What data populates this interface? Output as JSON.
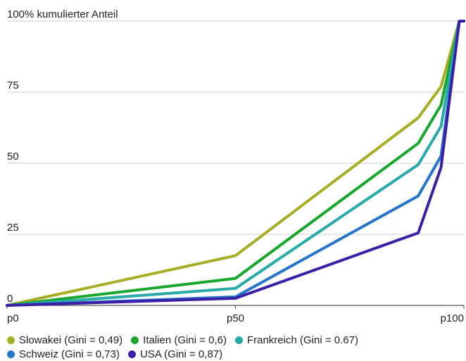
{
  "chart_data": {
    "type": "line",
    "title": "100% kumulierter Anteil",
    "xlabel": "",
    "ylabel": "100% kumulierter Anteil",
    "x": [
      0,
      50,
      90,
      95,
      99,
      100
    ],
    "x_tick_labels": [
      "p0",
      "p50",
      "p100"
    ],
    "x_tick_values": [
      0,
      50,
      100
    ],
    "ylim": [
      0,
      100
    ],
    "y_tick_labels": [
      "0",
      "25",
      "50",
      "75",
      "100% kumulierter Anteil"
    ],
    "y_tick_values": [
      0,
      25,
      50,
      75,
      100
    ],
    "grid": "horizontal",
    "legend_position": "bottom",
    "series": [
      {
        "name": "Slowakei (Gini = 0,49)",
        "color": "#a8ad26",
        "values": [
          0,
          17.5,
          66,
          77,
          100,
          100
        ]
      },
      {
        "name": "Italien (Gini = 0,6)",
        "color": "#18a62c",
        "values": [
          0,
          9.5,
          57,
          70.5,
          100,
          100
        ]
      },
      {
        "name": "Frankreich (Gini = 0.67)",
        "color": "#27aaa8",
        "values": [
          0,
          6,
          49.5,
          63,
          100,
          100
        ]
      },
      {
        "name": "Schweiz (Gini = 0,73)",
        "color": "#2575c8",
        "values": [
          0,
          3,
          38.5,
          52.5,
          100,
          100
        ]
      },
      {
        "name": "USA (Gini = 0,87)",
        "color": "#3b1fa6",
        "values": [
          0,
          2.5,
          25.5,
          48.5,
          100,
          100
        ]
      }
    ]
  }
}
